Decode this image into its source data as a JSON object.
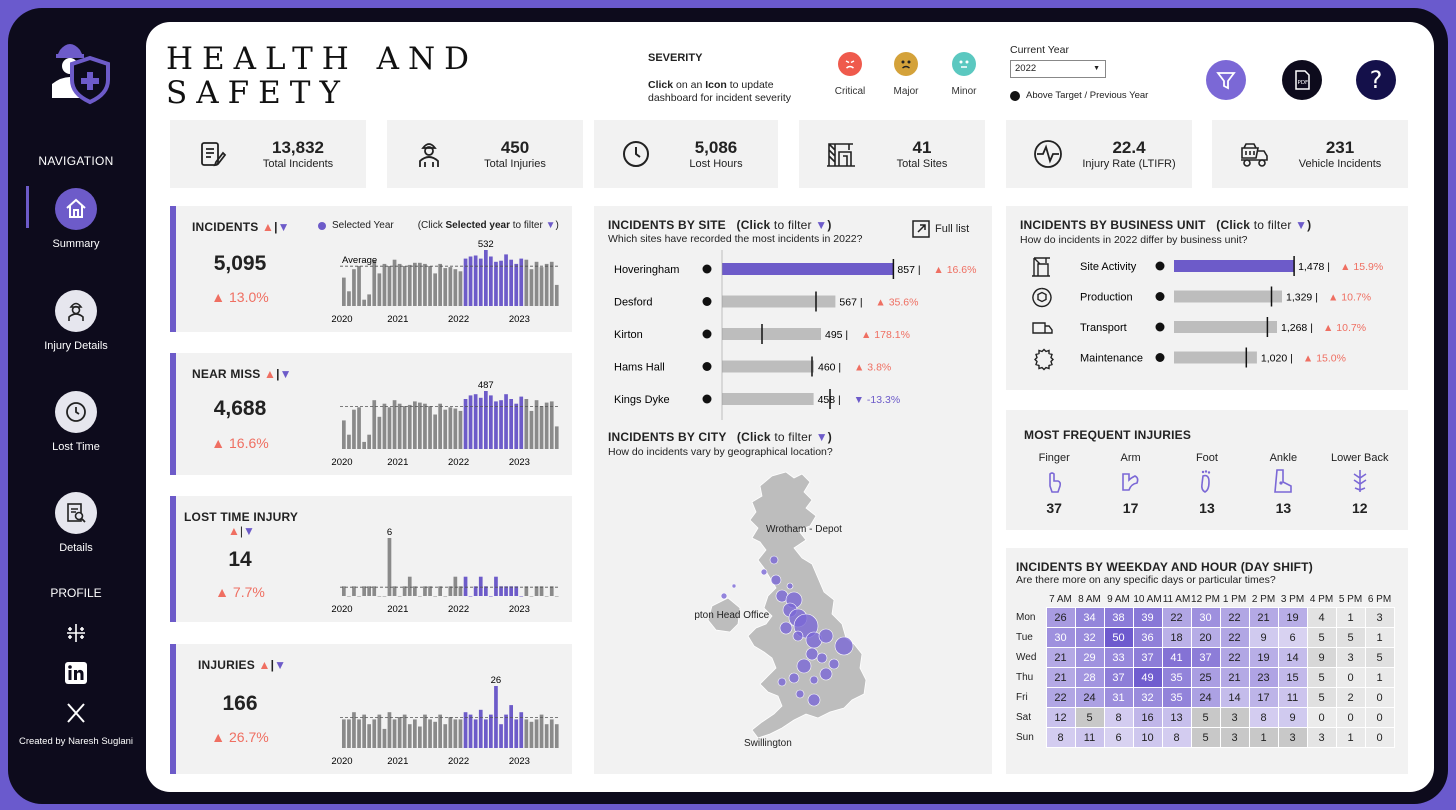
{
  "title": "HEALTH AND SAFETY",
  "sidebar": {
    "nav_title": "NAVIGATION",
    "items": [
      {
        "label": "Summary",
        "icon": "home-icon"
      },
      {
        "label": "Injury Details",
        "icon": "worker-icon"
      },
      {
        "label": "Lost Time",
        "icon": "clock-icon"
      },
      {
        "label": "Details",
        "icon": "document-search-icon"
      }
    ],
    "profile_title": "PROFILE",
    "credit": "Created by Naresh Suglani"
  },
  "severity": {
    "title": "SEVERITY",
    "instruction_bold1": "Click",
    "instruction_mid": " on an ",
    "instruction_bold2": "Icon",
    "instruction_rest": " to update dashboard for incident severity",
    "levels": [
      {
        "label": "Critical",
        "color": "#ef5a4c"
      },
      {
        "label": "Major",
        "color": "#d4a23a"
      },
      {
        "label": "Minor",
        "color": "#5bc8c0"
      }
    ]
  },
  "filter": {
    "year_label": "Current Year",
    "year_value": "2022",
    "target_note": "Above Target / Previous Year"
  },
  "colors": {
    "accent": "#6d5bc9",
    "grey_bar": "#8a8a8a",
    "up": "#ef6f62"
  },
  "kpis": [
    {
      "value": "13,832",
      "label": "Total Incidents",
      "icon": "clipboard-icon"
    },
    {
      "value": "450",
      "label": "Total Injuries",
      "icon": "injured-person-icon"
    },
    {
      "value": "5,086",
      "label": "Lost Hours",
      "icon": "clock-icon"
    },
    {
      "value": "41",
      "label": "Total Sites",
      "icon": "building-crane-icon"
    },
    {
      "value": "22.4",
      "label": "Injury Rate (LTIFR)",
      "icon": "heartbeat-icon"
    },
    {
      "value": "231",
      "label": "Vehicle Incidents",
      "icon": "dump-truck-icon"
    }
  ],
  "trend_cards": [
    {
      "title": "INCIDENTS",
      "value": "5,095",
      "change": "▲ 13.0%",
      "peak_label": "532",
      "avg_label": "Average",
      "legend": "Selected Year",
      "hint_pre": "(Click ",
      "hint_bold": "Selected year",
      "hint_post": " to filter ",
      "years": [
        "2020",
        "2021",
        "2022",
        "2023"
      ],
      "chart_data": {
        "type": "bar",
        "highlight_year": "2022",
        "values": [
          270,
          140,
          350,
          380,
          60,
          110,
          430,
          310,
          400,
          380,
          440,
          400,
          380,
          390,
          410,
          410,
          400,
          380,
          310,
          400,
          360,
          370,
          350,
          330,
          450,
          470,
          480,
          450,
          532,
          470,
          420,
          430,
          490,
          440,
          400,
          450,
          440,
          350,
          420,
          370,
          400,
          420,
          200
        ]
      }
    },
    {
      "title": "NEAR MISS",
      "value": "4,688",
      "change": "▲ 16.6%",
      "peak_label": "487",
      "years": [
        "2020",
        "2021",
        "2022",
        "2023"
      ],
      "chart_data": {
        "type": "bar",
        "highlight_year": "2022",
        "values": [
          240,
          120,
          330,
          350,
          60,
          120,
          410,
          270,
          380,
          350,
          410,
          380,
          360,
          370,
          400,
          390,
          380,
          360,
          290,
          380,
          330,
          350,
          340,
          320,
          420,
          450,
          460,
          430,
          487,
          450,
          400,
          410,
          460,
          420,
          380,
          440,
          420,
          320,
          410,
          360,
          390,
          400,
          190
        ]
      }
    },
    {
      "title": "LOST TIME INJURY",
      "value": "14",
      "change": "▲ 7.7%",
      "peak_label": "6",
      "years": [
        "2020",
        "2021",
        "2022",
        "2023"
      ],
      "chart_data": {
        "type": "bar",
        "highlight_year": "2022",
        "values": [
          1,
          0,
          1,
          0,
          1,
          1,
          1,
          0,
          0,
          6,
          1,
          0,
          1,
          2,
          1,
          0,
          1,
          1,
          0,
          1,
          0,
          1,
          2,
          1,
          2,
          0,
          1,
          2,
          1,
          0,
          2,
          1,
          1,
          1,
          1,
          0,
          1,
          0,
          1,
          1,
          0,
          1,
          0
        ]
      }
    },
    {
      "title": "INJURIES",
      "value": "166",
      "change": "▲ 26.7%",
      "peak_label": "26",
      "years": [
        "2020",
        "2021",
        "2022",
        "2023"
      ],
      "chart_data": {
        "type": "bar",
        "highlight_year": "2022",
        "values": [
          12,
          12,
          15,
          12,
          14,
          10,
          12,
          14,
          8,
          15,
          12,
          13,
          14,
          10,
          12,
          9,
          14,
          12,
          11,
          14,
          10,
          13,
          12,
          12,
          15,
          14,
          12,
          16,
          12,
          14,
          26,
          10,
          14,
          18,
          12,
          15,
          12,
          11,
          12,
          14,
          10,
          12,
          10
        ]
      }
    }
  ],
  "sites": {
    "title": "INCIDENTS BY SITE",
    "filter_hint_bold": "Click",
    "filter_hint_rest": " to filter ",
    "subtitle": "Which sites have recorded the most incidents in 2022?",
    "full_list": "Full list",
    "chart_data": {
      "type": "bar",
      "max": 1000,
      "rows": [
        {
          "name": "Hoveringham",
          "value": 857,
          "target": 857,
          "change": "▲ 16.6%",
          "up": true,
          "highlight": true
        },
        {
          "name": "Desford",
          "value": 567,
          "target": 470,
          "change": "▲ 35.6%",
          "up": true
        },
        {
          "name": "Kirton",
          "value": 495,
          "target": 200,
          "change": "▲ 178.1%",
          "up": true
        },
        {
          "name": "Hams Hall",
          "value": 460,
          "target": 450,
          "change": "▲ 3.8%",
          "up": true
        },
        {
          "name": "Kings Dyke",
          "value": 458,
          "target": 540,
          "change": "▼ -13.3%",
          "up": false
        }
      ]
    }
  },
  "city": {
    "title": "INCIDENTS BY CITY",
    "filter_hint_bold": "Click",
    "filter_hint_rest": " to filter ",
    "subtitle": "How do incidents vary by geographical location?",
    "labels": [
      "Wrotham - Depot",
      "Northampton Head Office",
      "Swillington"
    ]
  },
  "business": {
    "title": "INCIDENTS BY BUSINESS UNIT",
    "filter_hint_bold": "Click",
    "filter_hint_rest": " to filter ",
    "subtitle": "How do incidents in 2022 differ by business unit?",
    "chart_data": {
      "type": "bar",
      "max": 1600,
      "rows": [
        {
          "name": "Site Activity",
          "icon": "crane-icon",
          "value": 1478,
          "label": "1,478",
          "target": 1478,
          "change": "▲ 15.9%",
          "highlight": true
        },
        {
          "name": "Production",
          "icon": "cube-cycle-icon",
          "value": 1329,
          "label": "1,329",
          "target": 1200,
          "change": "▲ 10.7%"
        },
        {
          "name": "Transport",
          "icon": "truck-icon",
          "value": 1268,
          "label": "1,268",
          "target": 1150,
          "change": "▲ 10.7%"
        },
        {
          "name": "Maintenance",
          "icon": "gear-icon",
          "value": 1020,
          "label": "1,020",
          "target": 890,
          "change": "▲ 15.0%"
        }
      ]
    }
  },
  "injuries": {
    "title": "MOST FREQUENT INJURIES",
    "items": [
      {
        "label": "Finger",
        "value": "37",
        "icon": "finger-icon"
      },
      {
        "label": "Arm",
        "value": "17",
        "icon": "arm-icon"
      },
      {
        "label": "Foot",
        "value": "13",
        "icon": "foot-icon"
      },
      {
        "label": "Ankle",
        "value": "13",
        "icon": "ankle-icon"
      },
      {
        "label": "Lower Back",
        "value": "12",
        "icon": "lower-back-icon"
      }
    ]
  },
  "heatmap": {
    "title": "INCIDENTS BY WEEKDAY AND HOUR  (DAY SHIFT)",
    "subtitle": "Are there more on any specific days or particular times?",
    "chart_data": {
      "type": "heatmap",
      "hours": [
        "7 AM",
        "8 AM",
        "9 AM",
        "10 AM",
        "11 AM",
        "12 PM",
        "1 PM",
        "2 PM",
        "3 PM",
        "4 PM",
        "5 PM",
        "6 PM"
      ],
      "days": [
        "Mon",
        "Tue",
        "Wed",
        "Thu",
        "Fri",
        "Sat",
        "Sun"
      ],
      "values": [
        [
          26,
          34,
          38,
          39,
          22,
          30,
          22,
          21,
          19,
          4,
          1,
          3
        ],
        [
          30,
          32,
          50,
          36,
          18,
          20,
          22,
          9,
          6,
          5,
          5,
          1
        ],
        [
          21,
          29,
          33,
          37,
          41,
          37,
          22,
          19,
          14,
          9,
          3,
          5
        ],
        [
          21,
          28,
          37,
          49,
          35,
          25,
          21,
          23,
          15,
          5,
          0,
          1
        ],
        [
          22,
          24,
          31,
          32,
          35,
          24,
          14,
          17,
          11,
          5,
          2,
          0
        ],
        [
          12,
          5,
          8,
          16,
          13,
          5,
          3,
          8,
          9,
          0,
          0,
          0
        ],
        [
          8,
          11,
          6,
          10,
          8,
          5,
          3,
          1,
          3,
          3,
          1,
          0
        ]
      ],
      "grey_hours": [
        "4 PM",
        "5 PM",
        "6 PM"
      ]
    }
  }
}
